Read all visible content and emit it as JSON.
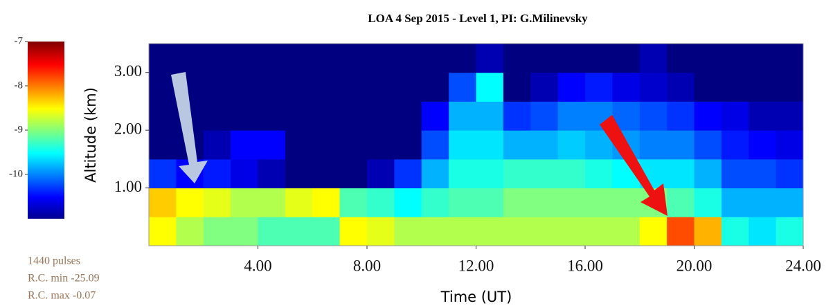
{
  "chart_data": {
    "type": "heatmap",
    "title": "LOA    4 Sep 2015 - Level 1, PI: G.Milinevsky",
    "x_label": "Time (UT)",
    "y_label": "Altitude (km)",
    "xlim": [
      0,
      24
    ],
    "ylim": [
      0,
      3.5
    ],
    "xticks": [
      {
        "value": 4,
        "label": "4.00"
      },
      {
        "value": 8,
        "label": "8.00"
      },
      {
        "value": 12,
        "label": "12.00"
      },
      {
        "value": 16,
        "label": "16.00"
      },
      {
        "value": 20,
        "label": "20.00"
      },
      {
        "value": 24,
        "label": "24.00"
      }
    ],
    "yticks": [
      {
        "value": 1,
        "label": "1.00"
      },
      {
        "value": 2,
        "label": "2.00"
      },
      {
        "value": 3,
        "label": "3.00"
      }
    ],
    "xbins": [
      0,
      1,
      2,
      3,
      4,
      5,
      6,
      7,
      8,
      9,
      10,
      11,
      12,
      13,
      14,
      15,
      16,
      17,
      18,
      19,
      20,
      21,
      22,
      23,
      24
    ],
    "ybins": [
      0,
      0.5,
      1,
      1.5,
      2,
      2.5,
      3,
      3.5
    ],
    "z": [
      [
        -8.5,
        -8.3,
        -10.3,
        -11,
        -11,
        -11,
        -11
      ],
      [
        -8.8,
        -8.5,
        -10.5,
        -11,
        -11,
        -11,
        -11
      ],
      [
        -9,
        -8.6,
        -10.4,
        -10.8,
        -11,
        -11,
        -11
      ],
      [
        -9,
        -8.8,
        -10.6,
        -10.5,
        -11,
        -11,
        -11
      ],
      [
        -9.2,
        -8.8,
        -10.8,
        -10.5,
        -11,
        -11,
        -11
      ],
      [
        -9.2,
        -8.6,
        -11,
        -11,
        -11,
        -11,
        -11
      ],
      [
        -9.2,
        -8.5,
        -11,
        -11,
        -11,
        -11,
        -11
      ],
      [
        -8.5,
        -9.2,
        -11,
        -11,
        -11,
        -11,
        -11
      ],
      [
        -8.6,
        -9.3,
        -10.8,
        -11,
        -11,
        -11,
        -11
      ],
      [
        -8.8,
        -9.5,
        -10.3,
        -11,
        -11,
        -11,
        -11
      ],
      [
        -8.8,
        -9.3,
        -9.8,
        -10.2,
        -10.5,
        -11,
        -11
      ],
      [
        -8.8,
        -9.2,
        -9.4,
        -9.6,
        -9.8,
        -10.2,
        -11
      ],
      [
        -8.8,
        -9.2,
        -9.4,
        -9.6,
        -9.8,
        -9.5,
        -10.8
      ],
      [
        -8.8,
        -9,
        -9.3,
        -9.8,
        -10.3,
        -11,
        -11
      ],
      [
        -8.8,
        -9,
        -9.3,
        -9.8,
        -10.2,
        -10.8,
        -11
      ],
      [
        -8.8,
        -9,
        -9.3,
        -9.7,
        -10,
        -10.5,
        -11
      ],
      [
        -8.8,
        -9,
        -9.4,
        -9.8,
        -10,
        -10.4,
        -11
      ],
      [
        -8.8,
        -9,
        -9.5,
        -9.9,
        -10.1,
        -10.6,
        -11
      ],
      [
        -8.5,
        -9,
        -9.6,
        -10,
        -10.2,
        -10.7,
        -10.8
      ],
      [
        -7.8,
        -9.2,
        -9.6,
        -10,
        -10.3,
        -10.8,
        -11
      ],
      [
        -8.2,
        -9.4,
        -9.8,
        -10.2,
        -10.5,
        -11,
        -11
      ],
      [
        -9.4,
        -9.8,
        -10.2,
        -10.4,
        -10.6,
        -11,
        -11
      ],
      [
        -9.6,
        -9.8,
        -10.2,
        -10.5,
        -10.8,
        -11,
        -11
      ],
      [
        -9.4,
        -9.8,
        -10.3,
        -10.6,
        -10.8,
        -11,
        -11
      ]
    ],
    "colormap": "jet",
    "colorbar_lim": [
      -11,
      -7
    ],
    "colorbar_ticks": [
      -7,
      -8,
      -9,
      -10
    ],
    "notes": [
      "1440 pulses",
      "R.C. min -25.09",
      "R.C. max -0.07"
    ]
  }
}
